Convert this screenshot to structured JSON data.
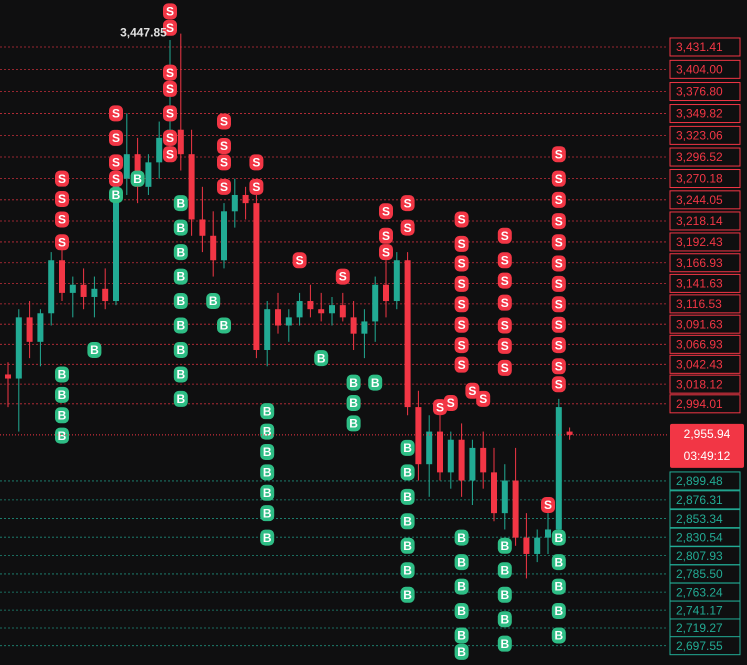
{
  "chart_data": {
    "type": "candlestick",
    "up_color": "#22ab94",
    "down_color": "#f23645",
    "buy_color": "#2ebd85",
    "sell_color": "#f23645",
    "ylim": [
      2680,
      3489
    ],
    "yticks": [
      {
        "value": 3431.41,
        "label": "3,431.41"
      },
      {
        "value": 3404.0,
        "label": "3,404.00"
      },
      {
        "value": 3376.8,
        "label": "3,376.80"
      },
      {
        "value": 3349.82,
        "label": "3,349.82"
      },
      {
        "value": 3323.06,
        "label": "3,323.06"
      },
      {
        "value": 3296.52,
        "label": "3,296.52"
      },
      {
        "value": 3270.18,
        "label": "3,270.18"
      },
      {
        "value": 3244.05,
        "label": "3,244.05"
      },
      {
        "value": 3218.14,
        "label": "3,218.14"
      },
      {
        "value": 3192.43,
        "label": "3,192.43"
      },
      {
        "value": 3166.93,
        "label": "3,166.93"
      },
      {
        "value": 3141.63,
        "label": "3,141.63"
      },
      {
        "value": 3116.53,
        "label": "3,116.53"
      },
      {
        "value": 3091.63,
        "label": "3,091.63"
      },
      {
        "value": 3066.93,
        "label": "3,066.93"
      },
      {
        "value": 3042.43,
        "label": "3,042.43"
      },
      {
        "value": 3018.12,
        "label": "3,018.12"
      },
      {
        "value": 2994.01,
        "label": "2,994.01"
      },
      {
        "value": 2899.48,
        "label": "2,899.48"
      },
      {
        "value": 2876.31,
        "label": "2,876.31"
      },
      {
        "value": 2853.34,
        "label": "2,853.34"
      },
      {
        "value": 2830.54,
        "label": "2,830.54"
      },
      {
        "value": 2807.93,
        "label": "2,807.93"
      },
      {
        "value": 2785.5,
        "label": "2,785.50"
      },
      {
        "value": 2763.24,
        "label": "2,763.24"
      },
      {
        "value": 2741.17,
        "label": "2,741.17"
      },
      {
        "value": 2719.27,
        "label": "2,719.27"
      },
      {
        "value": 2697.55,
        "label": "2,697.55"
      }
    ],
    "current_price": {
      "value": 2955.94,
      "label": "2,955.94"
    },
    "countdown": "03:49:12",
    "max_price": {
      "value": 3447.85,
      "label": "3,447.85"
    },
    "open": [
      3030,
      3025,
      3100,
      3070,
      3105,
      3170,
      3130,
      3140,
      3125,
      3135,
      3120,
      3270,
      3300,
      3260,
      3290,
      3320,
      3330,
      3300,
      3220,
      3200,
      3170,
      3230,
      3250,
      3240,
      3060,
      3110,
      3090,
      3100,
      3120,
      3110,
      3105,
      3115,
      3100,
      3080,
      3095,
      3140,
      3120,
      3170,
      2990,
      2920,
      2960,
      2910,
      2950,
      2900,
      2940,
      2910,
      2860,
      2900,
      2830,
      2810,
      2830,
      2840,
      2960
    ],
    "high": [
      3045,
      3110,
      3120,
      3110,
      3180,
      3200,
      3150,
      3160,
      3150,
      3160,
      3280,
      3350,
      3320,
      3300,
      3340,
      3440,
      3447.85,
      3330,
      3260,
      3230,
      3240,
      3270,
      3260,
      3250,
      3120,
      3130,
      3110,
      3130,
      3140,
      3130,
      3125,
      3130,
      3120,
      3110,
      3150,
      3170,
      3180,
      3180,
      3010,
      2980,
      2990,
      2960,
      2970,
      2950,
      2960,
      2940,
      2920,
      2940,
      2860,
      2840,
      2860,
      3000,
      2965
    ],
    "low": [
      2990,
      2960,
      3050,
      3040,
      3090,
      3120,
      3100,
      3110,
      3100,
      3110,
      3115,
      3250,
      3240,
      3250,
      3270,
      3300,
      3280,
      3200,
      3180,
      3150,
      3160,
      3210,
      3220,
      3050,
      3040,
      3080,
      3070,
      3090,
      3100,
      3095,
      3090,
      3095,
      3060,
      3050,
      3070,
      3100,
      3110,
      2980,
      2900,
      2880,
      2900,
      2890,
      2880,
      2870,
      2890,
      2850,
      2840,
      2820,
      2780,
      2800,
      2810,
      2830,
      2950
    ],
    "close": [
      3025,
      3100,
      3070,
      3105,
      3170,
      3130,
      3140,
      3125,
      3135,
      3120,
      3270,
      3300,
      3260,
      3290,
      3320,
      3330,
      3300,
      3220,
      3200,
      3170,
      3230,
      3250,
      3240,
      3060,
      3110,
      3090,
      3100,
      3120,
      3110,
      3105,
      3115,
      3100,
      3080,
      3095,
      3140,
      3120,
      3170,
      2990,
      2920,
      2960,
      2910,
      2950,
      2900,
      2940,
      2910,
      2860,
      2900,
      2830,
      2810,
      2830,
      2840,
      2990,
      2955.94
    ],
    "sell_signals": {
      "label": "S",
      "x": [
        5,
        5,
        5,
        5,
        10,
        10,
        10,
        10,
        15,
        15,
        15,
        15,
        15,
        15,
        15,
        20,
        20,
        20,
        20,
        23,
        23,
        27,
        31,
        35,
        35,
        35,
        37,
        37,
        42,
        42,
        42,
        42,
        42,
        42,
        42,
        42,
        46,
        46,
        46,
        46,
        46,
        46,
        46,
        51,
        51,
        51,
        51,
        51,
        51,
        51,
        51,
        51,
        51,
        51,
        51,
        40,
        41,
        43,
        44,
        50
      ],
      "values": [
        3270,
        3245,
        3220,
        3192,
        3350,
        3320,
        3290,
        3270,
        3475,
        3455,
        3400,
        3380,
        3350,
        3320,
        3300,
        3340,
        3310,
        3290,
        3260,
        3290,
        3260,
        3170,
        3150,
        3230,
        3200,
        3180,
        3240,
        3210,
        3220,
        3190,
        3166,
        3141,
        3116,
        3091,
        3066,
        3042,
        3200,
        3170,
        3145,
        3118,
        3090,
        3065,
        3038,
        3300,
        3270,
        3244,
        3218,
        3192,
        3166,
        3141,
        3116,
        3091,
        3066,
        3040,
        3018,
        2990,
        2995,
        3010,
        3000,
        2870
      ]
    },
    "buy_signals": {
      "label": "B",
      "x": [
        5,
        5,
        5,
        5,
        16,
        16,
        16,
        16,
        16,
        16,
        16,
        16,
        16,
        24,
        24,
        24,
        24,
        24,
        24,
        24,
        32,
        32,
        32,
        37,
        37,
        37,
        37,
        37,
        37,
        37,
        42,
        42,
        42,
        42,
        42,
        42,
        46,
        46,
        46,
        46,
        46,
        51,
        51,
        51,
        51,
        51,
        8,
        10,
        12,
        19,
        20,
        29,
        34
      ],
      "values": [
        3030,
        3005,
        2980,
        2955,
        3240,
        3210,
        3180,
        3150,
        3120,
        3090,
        3060,
        3030,
        3000,
        2985,
        2960,
        2935,
        2910,
        2885,
        2860,
        2830,
        3020,
        2995,
        2970,
        2940,
        2910,
        2880,
        2850,
        2820,
        2790,
        2760,
        2830,
        2800,
        2770,
        2740,
        2710,
        2690,
        2820,
        2790,
        2760,
        2730,
        2700,
        2830,
        2800,
        2770,
        2740,
        2710,
        3060,
        3250,
        3270,
        3120,
        3090,
        3050,
        3020
      ]
    }
  }
}
